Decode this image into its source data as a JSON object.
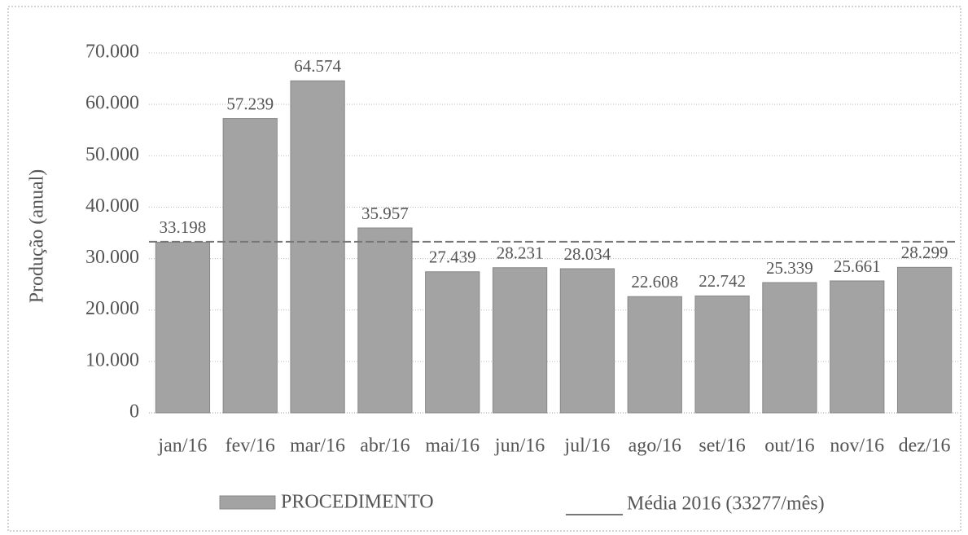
{
  "chart_data": {
    "type": "bar",
    "y_label": "Produção (anual)",
    "categories": [
      "jan/16",
      "fev/16",
      "mar/16",
      "abr/16",
      "mai/16",
      "jun/16",
      "jul/16",
      "ago/16",
      "set/16",
      "out/16",
      "nov/16",
      "dez/16"
    ],
    "series": [
      {
        "name": "PROCEDIMENTO",
        "color": "#a3a3a3",
        "values": [
          33198,
          57239,
          64574,
          35957,
          27439,
          28231,
          28034,
          22608,
          22742,
          25339,
          25661,
          28299
        ],
        "value_labels": [
          "33.198",
          "57.239",
          "64.574",
          "35.957",
          "27.439",
          "28.231",
          "28.034",
          "22.608",
          "22.742",
          "25.339",
          "25.661",
          "28.299"
        ]
      }
    ],
    "mean_line": {
      "name": "Média 2016 (33277/mês)",
      "value": 33277,
      "color": "#777777"
    },
    "ylim": [
      0,
      70000
    ],
    "yticks": [
      0,
      {
        "value": 10000,
        "label": "10.000"
      },
      {
        "value": 20000,
        "label": "20.000"
      },
      {
        "value": 30000,
        "label": "30.000"
      },
      {
        "value": 40000,
        "label": "40.000"
      },
      {
        "value": 50000,
        "label": "50.000"
      },
      {
        "value": 60000,
        "label": "60.000"
      },
      {
        "value": 70000,
        "label": "70.000"
      }
    ],
    "grid": true
  }
}
